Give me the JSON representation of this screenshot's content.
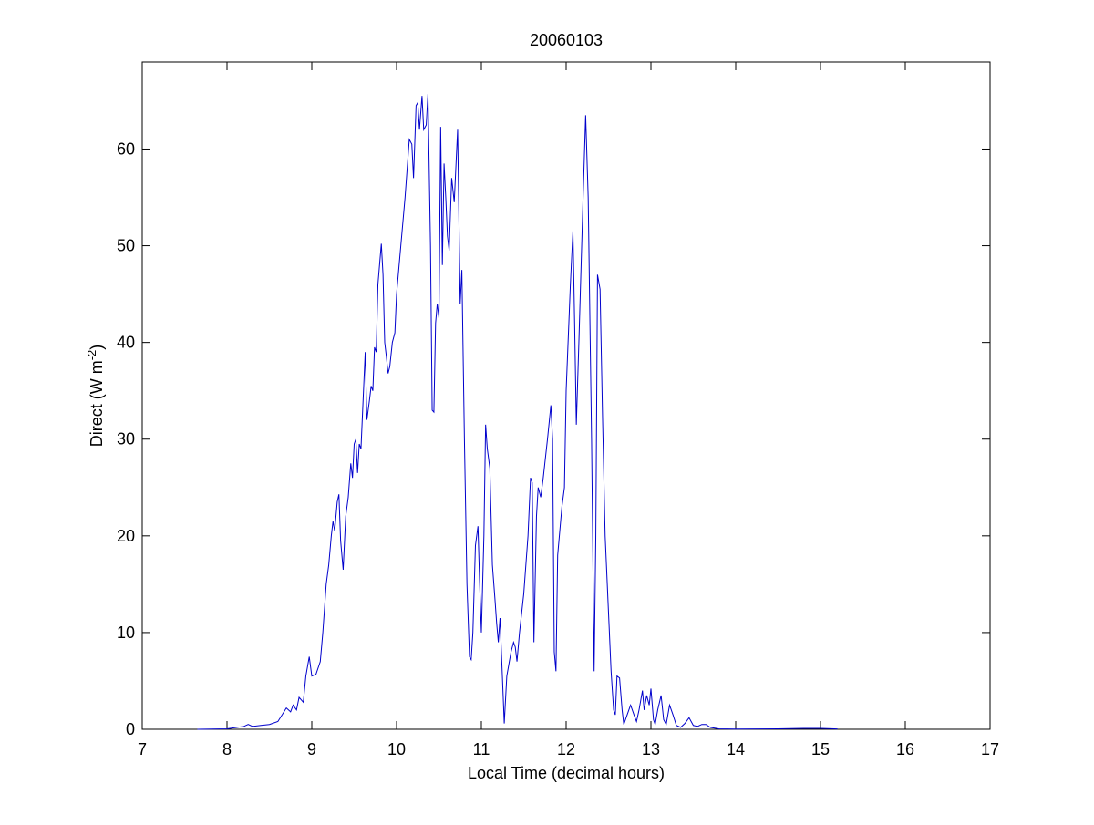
{
  "chart_data": {
    "type": "line",
    "title": "20060103",
    "xlabel": "Local Time (decimal hours)",
    "ylabel": {
      "text": "Direct (W m",
      "sup": "-2",
      "end": ")"
    },
    "xlim": [
      7,
      17
    ],
    "xticks": [
      7,
      8,
      9,
      10,
      11,
      12,
      13,
      14,
      15,
      16,
      17
    ],
    "ylim": [
      0,
      69
    ],
    "yticks": [
      0,
      10,
      20,
      30,
      40,
      50,
      60
    ],
    "grid": false,
    "series": [
      {
        "color": "#0000cc",
        "x": [
          7.65,
          8.0,
          8.2,
          8.25,
          8.3,
          8.4,
          8.5,
          8.6,
          8.65,
          8.7,
          8.75,
          8.78,
          8.82,
          8.85,
          8.9,
          8.93,
          8.97,
          9.0,
          9.05,
          9.1,
          9.13,
          9.17,
          9.2,
          9.23,
          9.25,
          9.27,
          9.3,
          9.32,
          9.34,
          9.37,
          9.4,
          9.43,
          9.46,
          9.48,
          9.5,
          9.52,
          9.54,
          9.56,
          9.58,
          9.6,
          9.63,
          9.65,
          9.68,
          9.7,
          9.72,
          9.74,
          9.76,
          9.78,
          9.82,
          9.84,
          9.86,
          9.88,
          9.9,
          9.92,
          9.95,
          9.98,
          10.0,
          10.05,
          10.1,
          10.15,
          10.18,
          10.2,
          10.23,
          10.25,
          10.27,
          10.3,
          10.32,
          10.35,
          10.37,
          10.4,
          10.42,
          10.44,
          10.46,
          10.48,
          10.5,
          10.52,
          10.54,
          10.56,
          10.58,
          10.6,
          10.62,
          10.65,
          10.68,
          10.72,
          10.75,
          10.77,
          10.8,
          10.83,
          10.86,
          10.88,
          10.9,
          10.93,
          10.96,
          10.98,
          11.0,
          11.03,
          11.05,
          11.07,
          11.1,
          11.13,
          11.16,
          11.18,
          11.2,
          11.22,
          11.25,
          11.27,
          11.3,
          11.35,
          11.38,
          11.4,
          11.42,
          11.45,
          11.5,
          11.55,
          11.58,
          11.6,
          11.62,
          11.65,
          11.67,
          11.7,
          11.73,
          11.78,
          11.82,
          11.84,
          11.86,
          11.88,
          11.9,
          11.95,
          11.98,
          12.0,
          12.05,
          12.08,
          12.1,
          12.12,
          12.15,
          12.2,
          12.23,
          12.26,
          12.3,
          12.33,
          12.35,
          12.37,
          12.4,
          12.43,
          12.46,
          12.5,
          12.53,
          12.56,
          12.58,
          12.6,
          12.63,
          12.66,
          12.68,
          12.72,
          12.76,
          12.8,
          12.83,
          12.86,
          12.9,
          12.92,
          12.95,
          12.98,
          13.0,
          13.03,
          13.05,
          13.08,
          13.12,
          13.15,
          13.18,
          13.22,
          13.26,
          13.3,
          13.35,
          13.4,
          13.45,
          13.5,
          13.55,
          13.6,
          13.65,
          13.7,
          13.8,
          14.0,
          14.5,
          14.8,
          15.0,
          15.2
        ],
        "values": [
          0,
          0.05,
          0.3,
          0.5,
          0.3,
          0.4,
          0.5,
          0.8,
          1.5,
          2.2,
          1.8,
          2.5,
          2.0,
          3.3,
          2.8,
          5.5,
          7.5,
          5.5,
          5.7,
          7,
          10,
          15,
          17,
          20,
          21.5,
          20.5,
          23.5,
          24.3,
          19.5,
          16.5,
          22,
          24,
          27.5,
          26,
          29.5,
          30,
          26.5,
          29.5,
          29,
          33,
          39,
          32,
          34,
          35.5,
          35,
          39.5,
          39,
          46,
          50.2,
          47,
          40,
          38.5,
          36.8,
          37.5,
          40,
          41,
          45,
          50,
          55,
          61,
          60.5,
          57,
          64.5,
          64.8,
          62,
          65.5,
          62,
          62.5,
          65.7,
          50,
          33,
          32.8,
          42,
          44,
          42.5,
          62.3,
          48,
          58.5,
          55,
          51,
          49.5,
          57,
          54.5,
          62,
          44,
          47.5,
          30,
          15,
          7.5,
          7.2,
          10,
          19,
          21,
          15,
          10,
          20,
          31.5,
          29,
          27,
          17,
          13.5,
          11,
          9,
          11.5,
          5,
          0.6,
          5.5,
          8,
          9,
          8.5,
          7,
          10,
          14,
          20,
          26,
          25.5,
          9,
          22,
          25,
          24,
          26,
          30,
          33.5,
          30,
          8,
          6,
          18,
          23,
          25,
          35,
          46,
          51.5,
          42,
          31.5,
          40,
          55,
          63.5,
          55,
          30,
          6,
          20,
          47,
          45.5,
          32,
          20,
          12,
          6,
          2,
          1.5,
          5.5,
          5.3,
          2,
          0.5,
          1.5,
          2.5,
          1.5,
          0.8,
          2,
          4,
          2,
          3.5,
          2.5,
          4.2,
          1,
          0.5,
          2,
          3.5,
          1,
          0.5,
          2.5,
          1.5,
          0.4,
          0.2,
          0.6,
          1.2,
          0.4,
          0.3,
          0.5,
          0.5,
          0.2,
          0.05,
          0.02,
          0.05,
          0.1,
          0.1,
          0.03
        ]
      }
    ]
  }
}
